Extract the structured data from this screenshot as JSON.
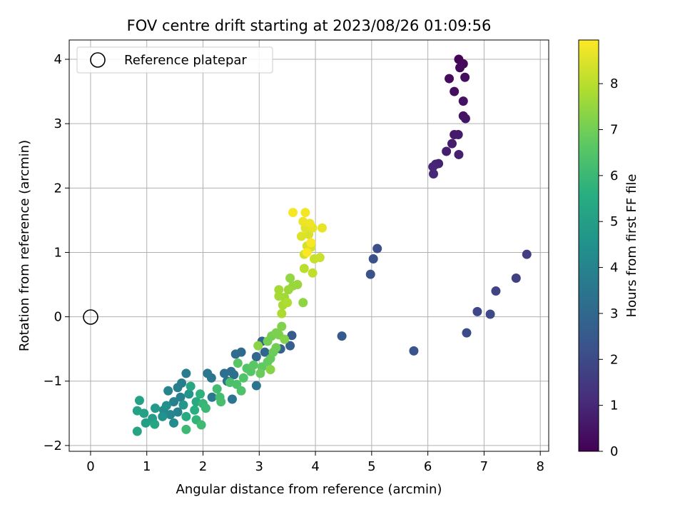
{
  "chart_data": {
    "type": "scatter",
    "title": "FOV centre drift starting at 2023/08/26 01:09:56",
    "xlabel": "Angular distance from reference (arcmin)",
    "ylabel": "Rotation from reference (arcmin)",
    "xlim": [
      -0.38,
      8.15
    ],
    "ylim": [
      -2.09,
      4.3
    ],
    "x_ticks": [
      0,
      1,
      2,
      3,
      4,
      5,
      6,
      7,
      8
    ],
    "y_ticks": [
      -2,
      -1,
      0,
      1,
      2,
      3,
      4
    ],
    "grid": true,
    "legend": {
      "position": "top-left",
      "entries": [
        "Reference platepar"
      ]
    },
    "reference_point": {
      "x": 0,
      "y": 0,
      "label": "Reference platepar"
    },
    "colorbar": {
      "label": "Hours from first FF file",
      "colormap": "viridis",
      "range": [
        0,
        8.95
      ],
      "ticks": [
        0,
        1,
        2,
        3,
        4,
        5,
        6,
        7,
        8
      ]
    },
    "series": [
      {
        "color_by": "hours",
        "points": [
          {
            "x": 6.55,
            "y": 4.0,
            "c": 0.1
          },
          {
            "x": 6.63,
            "y": 3.93,
            "c": 0.15
          },
          {
            "x": 6.57,
            "y": 3.87,
            "c": 0.2
          },
          {
            "x": 6.38,
            "y": 3.7,
            "c": 0.25
          },
          {
            "x": 6.66,
            "y": 3.72,
            "c": 0.3
          },
          {
            "x": 6.47,
            "y": 3.5,
            "c": 0.35
          },
          {
            "x": 6.63,
            "y": 3.35,
            "c": 0.4
          },
          {
            "x": 6.63,
            "y": 3.12,
            "c": 0.45
          },
          {
            "x": 6.67,
            "y": 3.08,
            "c": 0.5
          },
          {
            "x": 6.47,
            "y": 2.83,
            "c": 0.6
          },
          {
            "x": 6.54,
            "y": 2.83,
            "c": 0.65
          },
          {
            "x": 6.43,
            "y": 2.69,
            "c": 0.7
          },
          {
            "x": 6.33,
            "y": 2.57,
            "c": 0.75
          },
          {
            "x": 6.55,
            "y": 2.52,
            "c": 0.8
          },
          {
            "x": 6.19,
            "y": 2.38,
            "c": 0.85
          },
          {
            "x": 6.14,
            "y": 2.37,
            "c": 0.9
          },
          {
            "x": 6.09,
            "y": 2.33,
            "c": 0.95
          },
          {
            "x": 6.1,
            "y": 2.22,
            "c": 1.0
          },
          {
            "x": 7.76,
            "y": 0.97,
            "c": 1.6
          },
          {
            "x": 7.57,
            "y": 0.6,
            "c": 1.7
          },
          {
            "x": 7.21,
            "y": 0.4,
            "c": 1.8
          },
          {
            "x": 6.88,
            "y": 0.08,
            "c": 1.9
          },
          {
            "x": 7.11,
            "y": 0.04,
            "c": 2.0
          },
          {
            "x": 6.69,
            "y": -0.25,
            "c": 2.05
          },
          {
            "x": 5.1,
            "y": 1.06,
            "c": 2.15
          },
          {
            "x": 5.03,
            "y": 0.9,
            "c": 2.2
          },
          {
            "x": 4.98,
            "y": 0.66,
            "c": 2.25
          },
          {
            "x": 5.75,
            "y": -0.53,
            "c": 2.35
          },
          {
            "x": 4.47,
            "y": -0.3,
            "c": 2.5
          },
          {
            "x": 3.58,
            "y": -0.29,
            "c": 2.6
          },
          {
            "x": 3.55,
            "y": -0.45,
            "c": 2.7
          },
          {
            "x": 3.38,
            "y": -0.5,
            "c": 2.8
          },
          {
            "x": 3.05,
            "y": -0.38,
            "c": 2.85
          },
          {
            "x": 3.1,
            "y": -0.55,
            "c": 2.9
          },
          {
            "x": 2.95,
            "y": -0.62,
            "c": 3.0
          },
          {
            "x": 2.68,
            "y": -0.55,
            "c": 3.1
          },
          {
            "x": 2.58,
            "y": -0.58,
            "c": 3.15
          },
          {
            "x": 2.5,
            "y": -0.85,
            "c": 3.2
          },
          {
            "x": 2.38,
            "y": -0.88,
            "c": 3.25
          },
          {
            "x": 2.55,
            "y": -0.9,
            "c": 3.3
          },
          {
            "x": 2.43,
            "y": -1.0,
            "c": 3.35
          },
          {
            "x": 2.95,
            "y": -1.07,
            "c": 3.4
          },
          {
            "x": 2.52,
            "y": -1.28,
            "c": 3.45
          },
          {
            "x": 2.15,
            "y": -0.95,
            "c": 3.5
          },
          {
            "x": 2.08,
            "y": -0.88,
            "c": 3.55
          },
          {
            "x": 2.16,
            "y": -1.25,
            "c": 3.6
          },
          {
            "x": 1.7,
            "y": -0.88,
            "c": 3.7
          },
          {
            "x": 1.62,
            "y": -1.03,
            "c": 3.75
          },
          {
            "x": 1.55,
            "y": -1.1,
            "c": 3.8
          },
          {
            "x": 1.6,
            "y": -1.25,
            "c": 3.85
          },
          {
            "x": 1.48,
            "y": -1.32,
            "c": 3.9
          },
          {
            "x": 1.55,
            "y": -1.48,
            "c": 3.95
          },
          {
            "x": 1.38,
            "y": -1.15,
            "c": 4.0
          },
          {
            "x": 1.42,
            "y": -1.52,
            "c": 4.1
          },
          {
            "x": 1.3,
            "y": -1.45,
            "c": 4.2
          },
          {
            "x": 1.48,
            "y": -1.65,
            "c": 4.3
          },
          {
            "x": 1.35,
            "y": -1.38,
            "c": 4.4
          },
          {
            "x": 1.28,
            "y": -1.55,
            "c": 4.5
          },
          {
            "x": 1.75,
            "y": -1.2,
            "c": 4.6
          },
          {
            "x": 1.65,
            "y": -1.37,
            "c": 4.7
          },
          {
            "x": 1.15,
            "y": -1.42,
            "c": 4.8
          },
          {
            "x": 1.1,
            "y": -1.58,
            "c": 4.9
          },
          {
            "x": 0.98,
            "y": -1.65,
            "c": 5.0
          },
          {
            "x": 0.95,
            "y": -1.5,
            "c": 5.05
          },
          {
            "x": 0.87,
            "y": -1.3,
            "c": 5.1
          },
          {
            "x": 0.83,
            "y": -1.46,
            "c": 5.15
          },
          {
            "x": 0.83,
            "y": -1.78,
            "c": 5.2
          },
          {
            "x": 1.14,
            "y": -1.67,
            "c": 5.25
          },
          {
            "x": 1.78,
            "y": -1.08,
            "c": 5.3
          },
          {
            "x": 1.88,
            "y": -1.32,
            "c": 5.4
          },
          {
            "x": 1.7,
            "y": -1.55,
            "c": 5.5
          },
          {
            "x": 1.85,
            "y": -1.45,
            "c": 5.6
          },
          {
            "x": 1.95,
            "y": -1.2,
            "c": 5.7
          },
          {
            "x": 1.88,
            "y": -1.6,
            "c": 5.8
          },
          {
            "x": 2.0,
            "y": -1.35,
            "c": 5.9
          },
          {
            "x": 2.05,
            "y": -1.42,
            "c": 6.0
          },
          {
            "x": 1.7,
            "y": -1.75,
            "c": 6.05
          },
          {
            "x": 1.97,
            "y": -1.68,
            "c": 6.1
          },
          {
            "x": 2.25,
            "y": -1.12,
            "c": 6.15
          },
          {
            "x": 2.3,
            "y": -1.25,
            "c": 6.2
          },
          {
            "x": 2.32,
            "y": -1.32,
            "c": 6.25
          },
          {
            "x": 2.48,
            "y": -1.02,
            "c": 6.3
          },
          {
            "x": 2.6,
            "y": -1.05,
            "c": 6.35
          },
          {
            "x": 2.68,
            "y": -1.15,
            "c": 6.4
          },
          {
            "x": 2.72,
            "y": -0.95,
            "c": 6.45
          },
          {
            "x": 2.78,
            "y": -0.8,
            "c": 6.5
          },
          {
            "x": 2.85,
            "y": -0.85,
            "c": 6.55
          },
          {
            "x": 2.62,
            "y": -0.72,
            "c": 6.6
          },
          {
            "x": 2.9,
            "y": -0.75,
            "c": 6.65
          },
          {
            "x": 3.05,
            "y": -0.78,
            "c": 6.7
          },
          {
            "x": 3.15,
            "y": -0.7,
            "c": 6.75
          },
          {
            "x": 3.2,
            "y": -0.65,
            "c": 6.8
          },
          {
            "x": 3.02,
            "y": -0.88,
            "c": 6.85
          },
          {
            "x": 3.25,
            "y": -0.55,
            "c": 6.9
          },
          {
            "x": 3.3,
            "y": -0.48,
            "c": 6.95
          },
          {
            "x": 3.15,
            "y": -0.38,
            "c": 7.0
          },
          {
            "x": 3.22,
            "y": -0.3,
            "c": 7.05
          },
          {
            "x": 3.3,
            "y": -0.25,
            "c": 7.1
          },
          {
            "x": 3.35,
            "y": -0.28,
            "c": 7.15
          },
          {
            "x": 3.4,
            "y": -0.15,
            "c": 7.2
          },
          {
            "x": 3.45,
            "y": -0.35,
            "c": 7.25
          },
          {
            "x": 3.2,
            "y": -0.82,
            "c": 7.3
          },
          {
            "x": 2.98,
            "y": -0.45,
            "c": 7.35
          },
          {
            "x": 3.78,
            "y": 0.22,
            "c": 7.4
          },
          {
            "x": 3.55,
            "y": 0.6,
            "c": 7.45
          },
          {
            "x": 3.6,
            "y": 0.48,
            "c": 7.5
          },
          {
            "x": 3.68,
            "y": 0.5,
            "c": 7.55
          },
          {
            "x": 3.52,
            "y": 0.42,
            "c": 7.6
          },
          {
            "x": 3.45,
            "y": 0.3,
            "c": 7.65
          },
          {
            "x": 3.35,
            "y": 0.32,
            "c": 7.7
          },
          {
            "x": 3.35,
            "y": 0.42,
            "c": 7.72
          },
          {
            "x": 3.42,
            "y": 0.18,
            "c": 7.75
          },
          {
            "x": 3.4,
            "y": 0.05,
            "c": 7.8
          },
          {
            "x": 3.5,
            "y": 0.22,
            "c": 7.85
          },
          {
            "x": 3.8,
            "y": 0.75,
            "c": 8.0
          },
          {
            "x": 3.95,
            "y": 0.68,
            "c": 8.1
          },
          {
            "x": 3.98,
            "y": 0.9,
            "c": 8.2
          },
          {
            "x": 4.08,
            "y": 0.92,
            "c": 8.25
          },
          {
            "x": 3.8,
            "y": 0.97,
            "c": 8.3
          },
          {
            "x": 3.85,
            "y": 1.1,
            "c": 8.35
          },
          {
            "x": 3.92,
            "y": 1.08,
            "c": 8.4
          },
          {
            "x": 3.88,
            "y": 1.28,
            "c": 8.45
          },
          {
            "x": 3.75,
            "y": 1.25,
            "c": 8.5
          },
          {
            "x": 3.82,
            "y": 1.38,
            "c": 8.55
          },
          {
            "x": 3.95,
            "y": 1.38,
            "c": 8.6
          },
          {
            "x": 4.12,
            "y": 1.38,
            "c": 8.65
          },
          {
            "x": 3.78,
            "y": 1.48,
            "c": 8.7
          },
          {
            "x": 3.9,
            "y": 1.45,
            "c": 8.75
          },
          {
            "x": 3.82,
            "y": 1.62,
            "c": 8.8
          },
          {
            "x": 3.6,
            "y": 1.62,
            "c": 8.85
          },
          {
            "x": 3.92,
            "y": 1.15,
            "c": 8.9
          },
          {
            "x": 3.85,
            "y": 1.0,
            "c": 8.95
          }
        ]
      }
    ]
  }
}
